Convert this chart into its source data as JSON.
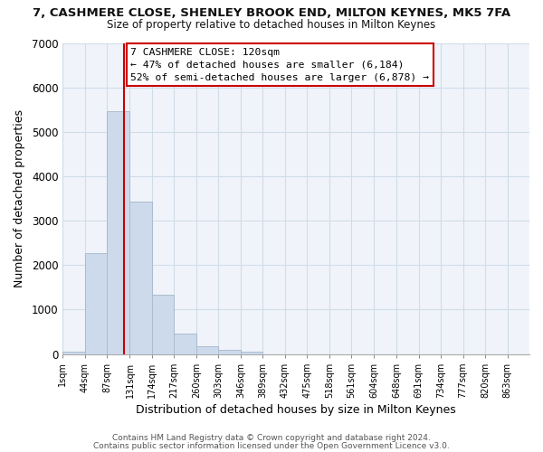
{
  "title_line1": "7, CASHMERE CLOSE, SHENLEY BROOK END, MILTON KEYNES, MK5 7FA",
  "title_line2": "Size of property relative to detached houses in Milton Keynes",
  "xlabel": "Distribution of detached houses by size in Milton Keynes",
  "ylabel": "Number of detached properties",
  "bar_left_edges": [
    1,
    44,
    87,
    131,
    174,
    217,
    260,
    303,
    346,
    389,
    432,
    475,
    518,
    561,
    604,
    648,
    691,
    734,
    777,
    820
  ],
  "bar_heights": [
    60,
    2270,
    5470,
    3420,
    1340,
    460,
    175,
    100,
    60,
    0,
    0,
    0,
    0,
    0,
    0,
    0,
    0,
    0,
    0,
    0
  ],
  "bin_width": 43,
  "bar_color": "#cddaeb",
  "bar_edge_color": "#aabcce",
  "vline_x": 120,
  "vline_color": "#cc0000",
  "ylim": [
    0,
    7000
  ],
  "yticks": [
    0,
    1000,
    2000,
    3000,
    4000,
    5000,
    6000,
    7000
  ],
  "xtick_labels": [
    "1sqm",
    "44sqm",
    "87sqm",
    "131sqm",
    "174sqm",
    "217sqm",
    "260sqm",
    "303sqm",
    "346sqm",
    "389sqm",
    "432sqm",
    "475sqm",
    "518sqm",
    "561sqm",
    "604sqm",
    "648sqm",
    "691sqm",
    "734sqm",
    "777sqm",
    "820sqm",
    "863sqm"
  ],
  "annotation_box_title": "7 CASHMERE CLOSE: 120sqm",
  "annotation_line1": "← 47% of detached houses are smaller (6,184)",
  "annotation_line2": "52% of semi-detached houses are larger (6,878) →",
  "annotation_box_color": "#ffffff",
  "annotation_box_edge": "#cc0000",
  "footer_line1": "Contains HM Land Registry data © Crown copyright and database right 2024.",
  "footer_line2": "Contains public sector information licensed under the Open Government Licence v3.0.",
  "grid_color": "#d0dce8",
  "bg_color": "#ffffff",
  "plot_bg_color": "#f0f4fa"
}
